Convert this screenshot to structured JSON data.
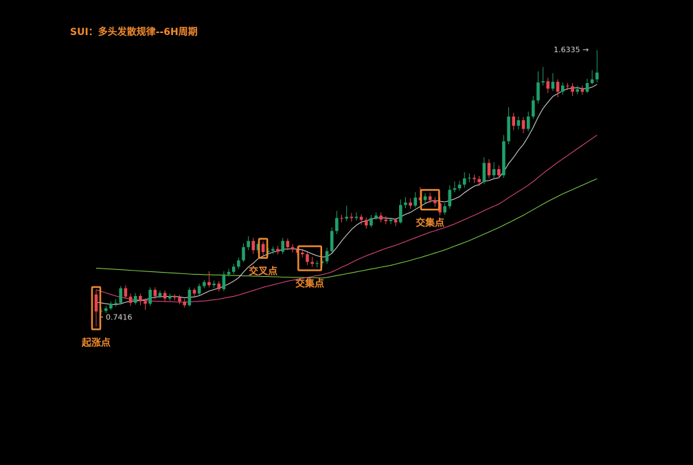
{
  "title": "SUI：多头发散规律--6H周期",
  "colors": {
    "up": "#1fa06a",
    "down": "#e8474f",
    "ma_short": "#d0d0d0",
    "ma_mid": "#d9467e",
    "ma_long": "#7ac943",
    "annotation": "#f08a2e",
    "price_label": "#d6d6d6"
  },
  "chart_data": {
    "type": "candlestick",
    "y_scale": "linear",
    "grid": false,
    "low_label": "0.7416",
    "high_label": "1.6335",
    "candles": [
      [
        0.845,
        0.79,
        0.86,
        0.741
      ],
      [
        0.79,
        0.792,
        0.8,
        0.782
      ],
      [
        0.792,
        0.8,
        0.808,
        0.785
      ],
      [
        0.8,
        0.815,
        0.822,
        0.795
      ],
      [
        0.815,
        0.818,
        0.83,
        0.806
      ],
      [
        0.818,
        0.865,
        0.872,
        0.812
      ],
      [
        0.865,
        0.838,
        0.875,
        0.832
      ],
      [
        0.838,
        0.818,
        0.848,
        0.808
      ],
      [
        0.818,
        0.84,
        0.85,
        0.812
      ],
      [
        0.84,
        0.823,
        0.848,
        0.81
      ],
      [
        0.823,
        0.815,
        0.832,
        0.795
      ],
      [
        0.815,
        0.86,
        0.868,
        0.808
      ],
      [
        0.86,
        0.84,
        0.868,
        0.83
      ],
      [
        0.84,
        0.85,
        0.858,
        0.833
      ],
      [
        0.85,
        0.832,
        0.858,
        0.822
      ],
      [
        0.832,
        0.84,
        0.848,
        0.825
      ],
      [
        0.84,
        0.835,
        0.846,
        0.826
      ],
      [
        0.835,
        0.822,
        0.843,
        0.813
      ],
      [
        0.822,
        0.81,
        0.831,
        0.803
      ],
      [
        0.81,
        0.86,
        0.868,
        0.806
      ],
      [
        0.86,
        0.848,
        0.866,
        0.838
      ],
      [
        0.848,
        0.872,
        0.88,
        0.842
      ],
      [
        0.872,
        0.885,
        0.892,
        0.865
      ],
      [
        0.885,
        0.875,
        0.92,
        0.868
      ],
      [
        0.875,
        0.88,
        0.89,
        0.866
      ],
      [
        0.88,
        0.862,
        0.888,
        0.855
      ],
      [
        0.862,
        0.91,
        0.92,
        0.856
      ],
      [
        0.91,
        0.918,
        0.928,
        0.903
      ],
      [
        0.918,
        0.935,
        0.944,
        0.91
      ],
      [
        0.935,
        0.955,
        0.964,
        0.928
      ],
      [
        0.955,
        0.998,
        1.01,
        0.95
      ],
      [
        0.998,
        1.018,
        1.033,
        0.988
      ],
      [
        1.018,
        0.988,
        1.028,
        0.976
      ],
      [
        0.988,
        1.008,
        1.016,
        0.978
      ],
      [
        1.008,
        0.982,
        1.016,
        0.972
      ],
      [
        0.982,
        0.986,
        0.996,
        0.972
      ],
      [
        0.986,
        0.992,
        1.0,
        0.976
      ],
      [
        0.992,
        0.983,
        1.002,
        0.974
      ],
      [
        0.983,
        1.018,
        1.028,
        0.976
      ],
      [
        1.018,
        0.998,
        1.026,
        0.988
      ],
      [
        0.998,
        0.99,
        1.008,
        0.98
      ],
      [
        0.99,
        0.98,
        1.0,
        0.97
      ],
      [
        0.98,
        0.975,
        0.992,
        0.965
      ],
      [
        0.975,
        0.95,
        0.982,
        0.94
      ],
      [
        0.95,
        0.944,
        0.966,
        0.935
      ],
      [
        0.944,
        0.946,
        0.954,
        0.932
      ],
      [
        0.946,
        0.952,
        0.96,
        0.935
      ],
      [
        0.952,
        0.985,
        0.996,
        0.944
      ],
      [
        0.985,
        1.05,
        1.062,
        0.98
      ],
      [
        1.05,
        1.092,
        1.115,
        1.04
      ],
      [
        1.092,
        1.09,
        1.102,
        1.078
      ],
      [
        1.09,
        1.096,
        1.132,
        1.082
      ],
      [
        1.096,
        1.092,
        1.108,
        1.08
      ],
      [
        1.092,
        1.096,
        1.11,
        1.084
      ],
      [
        1.096,
        1.086,
        1.104,
        1.07
      ],
      [
        1.086,
        1.068,
        1.094,
        1.058
      ],
      [
        1.068,
        1.092,
        1.102,
        1.062
      ],
      [
        1.092,
        1.1,
        1.11,
        1.086
      ],
      [
        1.1,
        1.087,
        1.11,
        1.078
      ],
      [
        1.087,
        1.082,
        1.098,
        1.072
      ],
      [
        1.082,
        1.086,
        1.094,
        1.072
      ],
      [
        1.086,
        1.078,
        1.092,
        1.066
      ],
      [
        1.078,
        1.134,
        1.152,
        1.074
      ],
      [
        1.134,
        1.142,
        1.16,
        1.124
      ],
      [
        1.142,
        1.132,
        1.156,
        1.122
      ],
      [
        1.132,
        1.158,
        1.176,
        1.126
      ],
      [
        1.158,
        1.15,
        1.192,
        1.14
      ],
      [
        1.15,
        1.162,
        1.172,
        1.14
      ],
      [
        1.162,
        1.15,
        1.174,
        1.14
      ],
      [
        1.15,
        1.14,
        1.16,
        1.128
      ],
      [
        1.14,
        1.11,
        1.158,
        1.1
      ],
      [
        1.11,
        1.13,
        1.14,
        1.102
      ],
      [
        1.13,
        1.183,
        1.198,
        1.122
      ],
      [
        1.183,
        1.188,
        1.21,
        1.175
      ],
      [
        1.188,
        1.2,
        1.212,
        1.18
      ],
      [
        1.2,
        1.22,
        1.24,
        1.19
      ],
      [
        1.22,
        1.222,
        1.236,
        1.208
      ],
      [
        1.222,
        1.218,
        1.232,
        1.205
      ],
      [
        1.218,
        1.208,
        1.228,
        1.196
      ],
      [
        1.208,
        1.27,
        1.288,
        1.202
      ],
      [
        1.27,
        1.23,
        1.282,
        1.22
      ],
      [
        1.23,
        1.25,
        1.272,
        1.222
      ],
      [
        1.25,
        1.23,
        1.262,
        1.22
      ],
      [
        1.23,
        1.34,
        1.36,
        1.222
      ],
      [
        1.34,
        1.42,
        1.45,
        1.33
      ],
      [
        1.42,
        1.39,
        1.432,
        1.376
      ],
      [
        1.39,
        1.408,
        1.42,
        1.378
      ],
      [
        1.408,
        1.38,
        1.418,
        1.366
      ],
      [
        1.38,
        1.42,
        1.436,
        1.372
      ],
      [
        1.42,
        1.472,
        1.486,
        1.412
      ],
      [
        1.472,
        1.53,
        1.566,
        1.462
      ],
      [
        1.53,
        1.534,
        1.58,
        1.52
      ],
      [
        1.534,
        1.51,
        1.545,
        1.496
      ],
      [
        1.51,
        1.532,
        1.56,
        1.502
      ],
      [
        1.532,
        1.5,
        1.54,
        1.482
      ],
      [
        1.5,
        1.52,
        1.53,
        1.49
      ],
      [
        1.52,
        1.518,
        1.528,
        1.506
      ],
      [
        1.518,
        1.5,
        1.528,
        1.486
      ],
      [
        1.5,
        1.508,
        1.52,
        1.492
      ],
      [
        1.508,
        1.5,
        1.52,
        1.49
      ],
      [
        1.5,
        1.528,
        1.542,
        1.496
      ],
      [
        1.528,
        1.54,
        1.57,
        1.524
      ],
      [
        1.54,
        1.562,
        1.634,
        1.53
      ]
    ],
    "moving_averages": [
      {
        "values": [
          0.82,
          0.818,
          0.815,
          0.813,
          0.812,
          0.815,
          0.82,
          0.823,
          0.824,
          0.826,
          0.828,
          0.833,
          0.836,
          0.838,
          0.838,
          0.839,
          0.839,
          0.837,
          0.834,
          0.836,
          0.837,
          0.841,
          0.848,
          0.856,
          0.861,
          0.865,
          0.872,
          0.879,
          0.888,
          0.899,
          0.917,
          0.934,
          0.946,
          0.961,
          0.969,
          0.976,
          0.982,
          0.985,
          0.991,
          0.992,
          0.993,
          0.991,
          0.989,
          0.983,
          0.976,
          0.97,
          0.966,
          0.967,
          0.978,
          0.997,
          1.018,
          1.037,
          1.055,
          1.069,
          1.079,
          1.083,
          1.088,
          1.092,
          1.093,
          1.092,
          1.09,
          1.088,
          1.096,
          1.104,
          1.11,
          1.12,
          1.129,
          1.139,
          1.146,
          1.149,
          1.146,
          1.144,
          1.148,
          1.154,
          1.161,
          1.174,
          1.185,
          1.195,
          1.2,
          1.211,
          1.213,
          1.219,
          1.222,
          1.242,
          1.268,
          1.288,
          1.311,
          1.33,
          1.356,
          1.385,
          1.418,
          1.446,
          1.466,
          1.485,
          1.494,
          1.503,
          1.51,
          1.512,
          1.513,
          1.51,
          1.51,
          1.515,
          1.524
        ]
      },
      {
        "values": [
          0.86,
          0.855,
          0.85,
          0.845,
          0.84,
          0.836,
          0.833,
          0.83,
          0.828,
          0.826,
          0.825,
          0.824,
          0.823,
          0.823,
          0.822,
          0.822,
          0.821,
          0.82,
          0.82,
          0.821,
          0.822,
          0.823,
          0.824,
          0.826,
          0.828,
          0.83,
          0.833,
          0.836,
          0.839,
          0.843,
          0.848,
          0.853,
          0.858,
          0.863,
          0.868,
          0.872,
          0.876,
          0.88,
          0.884,
          0.888,
          0.891,
          0.894,
          0.897,
          0.9,
          0.903,
          0.906,
          0.909,
          0.913,
          0.918,
          0.925,
          0.933,
          0.94,
          0.948,
          0.956,
          0.963,
          0.97,
          0.976,
          0.982,
          0.988,
          0.994,
          0.999,
          1.004,
          1.01,
          1.016,
          1.022,
          1.028,
          1.034,
          1.04,
          1.046,
          1.051,
          1.056,
          1.061,
          1.067,
          1.073,
          1.08,
          1.087,
          1.094,
          1.101,
          1.108,
          1.116,
          1.123,
          1.13,
          1.137,
          1.147,
          1.158,
          1.168,
          1.178,
          1.188,
          1.198,
          1.21,
          1.223,
          1.236,
          1.248,
          1.26,
          1.272,
          1.283,
          1.294,
          1.305,
          1.316,
          1.327,
          1.338,
          1.349,
          1.36
        ]
      },
      {
        "values": [
          0.93,
          0.929,
          0.928,
          0.927,
          0.926,
          0.925,
          0.924,
          0.923,
          0.922,
          0.921,
          0.92,
          0.919,
          0.918,
          0.917,
          0.916,
          0.915,
          0.914,
          0.913,
          0.912,
          0.911,
          0.91,
          0.91,
          0.909,
          0.909,
          0.908,
          0.908,
          0.907,
          0.907,
          0.906,
          0.906,
          0.905,
          0.905,
          0.904,
          0.904,
          0.903,
          0.903,
          0.902,
          0.902,
          0.901,
          0.901,
          0.9,
          0.9,
          0.9,
          0.899,
          0.899,
          0.899,
          0.898,
          0.9,
          0.903,
          0.906,
          0.909,
          0.912,
          0.915,
          0.918,
          0.921,
          0.924,
          0.927,
          0.93,
          0.933,
          0.936,
          0.939,
          0.943,
          0.947,
          0.951,
          0.955,
          0.96,
          0.964,
          0.969,
          0.974,
          0.979,
          0.984,
          0.989,
          0.995,
          1.001,
          1.007,
          1.013,
          1.019,
          1.026,
          1.033,
          1.04,
          1.047,
          1.054,
          1.061,
          1.069,
          1.077,
          1.085,
          1.093,
          1.101,
          1.11,
          1.119,
          1.128,
          1.137,
          1.146,
          1.154,
          1.162,
          1.17,
          1.177,
          1.184,
          1.191,
          1.198,
          1.205,
          1.212,
          1.219
        ]
      }
    ]
  },
  "annotations": [
    {
      "label": "起涨点",
      "candle_start": 0,
      "candle_end": 0
    },
    {
      "label": "交叉点",
      "candle_start": 34,
      "candle_end": 34
    },
    {
      "label": "交集点",
      "candle_start": 42,
      "candle_end": 45
    },
    {
      "label": "交集点",
      "candle_start": 67,
      "candle_end": 69
    }
  ]
}
